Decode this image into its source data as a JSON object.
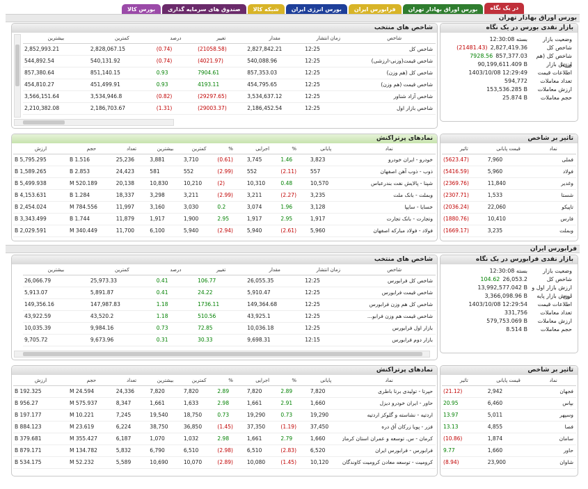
{
  "tabs": [
    {
      "label": "در یک نگاه",
      "color": "#c0303a",
      "active": true
    },
    {
      "label": "بورس اوراق بهادار تهران",
      "color": "#2f7d2f",
      "active": false
    },
    {
      "label": "فرابورس ایران",
      "color": "#d8b427",
      "active": false
    },
    {
      "label": "بورس انرژی ایران",
      "color": "#1e3f9a",
      "active": false
    },
    {
      "label": "شبکه کالا",
      "color": "#d8b427",
      "active": false
    },
    {
      "label": "صندوق های سرمایه گذاری",
      "color": "#6a2a6a",
      "active": false
    },
    {
      "label": "بورس کالا",
      "color": "#9b4aa8",
      "active": false
    }
  ],
  "tse": {
    "section_title": "بورس اوراق بهادار تهران",
    "market": {
      "title": "بازار نقدی بورس در یک نگاه",
      "rows": [
        {
          "label": "وضعیت بازار",
          "value": "بسته 12:30:08",
          "change": "",
          "tone": ""
        },
        {
          "label": "شاخص کل",
          "value": "2,827,419.36",
          "change": "(21481.43)",
          "tone": "neg"
        },
        {
          "label": "شاخص کل (هم وزن)",
          "value": "857,377.03",
          "change": "7928.56",
          "tone": "pos"
        },
        {
          "label": "ارزش بازار",
          "value": "90,199,611.409 B",
          "change": "",
          "tone": ""
        },
        {
          "label": "اطلاعات قیمت",
          "value": "1403/10/08 12:29:49",
          "change": "",
          "tone": ""
        },
        {
          "label": "تعداد معاملات",
          "value": "594,772",
          "change": "",
          "tone": ""
        },
        {
          "label": "ارزش معاملات",
          "value": "153,536.285 B",
          "change": "",
          "tone": ""
        },
        {
          "label": "حجم معاملات",
          "value": "25.874 B",
          "change": "",
          "tone": ""
        }
      ]
    },
    "indices": {
      "title": "شاخص های منتخب",
      "headers": [
        "شاخص",
        "زمان انتشار",
        "مقدار",
        "تغییر",
        "درصد",
        "کمترین",
        "بیشترین"
      ],
      "rows": [
        {
          "name": "شاخص کل",
          "time": "12:25",
          "value": "2,827,842.21",
          "change": "(21058.58)",
          "pct": "(0.74)",
          "low": "2,828,067.15",
          "high": "2,852,993.21",
          "tone": "neg"
        },
        {
          "name": "شاخص قیمت(وزنی-ارزشی)",
          "time": "12:25",
          "value": "540,088.96",
          "change": "(4021.97)",
          "pct": "(0.74)",
          "low": "540,131.92",
          "high": "544,892.54",
          "tone": "neg"
        },
        {
          "name": "شاخص کل (هم وزن)",
          "time": "12:25",
          "value": "857,353.03",
          "change": "7904.61",
          "pct": "0.93",
          "low": "851,140.15",
          "high": "857,380.64",
          "tone": "pos"
        },
        {
          "name": "شاخص قیمت (هم وزن)",
          "time": "12:25",
          "value": "454,795.65",
          "change": "4193.11",
          "pct": "0.93",
          "low": "451,499.91",
          "high": "454,810.27",
          "tone": "pos"
        },
        {
          "name": "شاخص آزاد شناور",
          "time": "12:25",
          "value": "3,534,637.12",
          "change": "(29297.65)",
          "pct": "(0.82)",
          "low": "3,534,946.8",
          "high": "3,566,151.64",
          "tone": "neg"
        },
        {
          "name": "شاخص بازار اول",
          "time": "12:25",
          "value": "2,186,452.54",
          "change": "(29003.37)",
          "pct": "(1.31)",
          "low": "2,186,703.67",
          "high": "2,210,382.08",
          "tone": "neg"
        }
      ]
    },
    "impact": {
      "title": "تاثیر بر شاخص",
      "headers": [
        "نماد",
        "قیمت پایانی",
        "تاثیر"
      ],
      "rows": [
        {
          "symbol": "فملی",
          "price": "7,960",
          "impact": "(5623.47)"
        },
        {
          "symbol": "فولاد",
          "price": "5,960",
          "impact": "(5416.59)"
        },
        {
          "symbol": "وغدیر",
          "price": "11,840",
          "impact": "(2369.76)"
        },
        {
          "symbol": "شستا",
          "price": "1,533",
          "impact": "(2307.71)"
        },
        {
          "symbol": "تاپیکو",
          "price": "22,060",
          "impact": "(2036.24)"
        },
        {
          "symbol": "فارس",
          "price": "10,410",
          "impact": "(1880.76)"
        },
        {
          "symbol": "وبملت",
          "price": "3,235",
          "impact": "(1669.17)"
        }
      ]
    },
    "active": {
      "title": "نمادهای پرتراکنش",
      "headers": [
        "نماد",
        "پایانی",
        "%",
        "اجرایی",
        "%",
        "کمترین",
        "بیشترین",
        "تعداد",
        "حجم",
        "ارزش"
      ],
      "rows": [
        {
          "name": "خودرو - ایران خودرو",
          "close": "3,823",
          "cpct": "1.46",
          "last": "3,745",
          "lpct": "(0.61)",
          "low": "3,710",
          "high": "3,881",
          "count": "25,236",
          "vol": "1.516 B",
          "val": "5,795.295 B",
          "ct": "pos",
          "lt": "neg"
        },
        {
          "name": "ذوب - ذوب آهن اصفهان",
          "close": "557",
          "cpct": "(2.11)",
          "last": "552",
          "lpct": "(2.99)",
          "low": "552",
          "high": "581",
          "count": "24,423",
          "vol": "2.853 B",
          "val": "1,589.265 B",
          "ct": "neg",
          "lt": "neg"
        },
        {
          "name": "شپنا - پالایش نفت بندرعباس",
          "close": "10,570",
          "cpct": "0.48",
          "last": "10,310",
          "lpct": "(2)",
          "low": "10,210",
          "high": "10,830",
          "count": "20,138",
          "vol": "520.189 M",
          "val": "5,499.938 B",
          "ct": "pos",
          "lt": "neg"
        },
        {
          "name": "وبملت - بانک ملت",
          "close": "3,235",
          "cpct": "(2.27)",
          "last": "3,211",
          "lpct": "(2.99)",
          "low": "3,211",
          "high": "3,298",
          "count": "18,337",
          "vol": "1.284 B",
          "val": "4,153.631 B",
          "ct": "neg",
          "lt": "neg"
        },
        {
          "name": "خسایا - سایپا",
          "close": "3,128",
          "cpct": "1.96",
          "last": "3,074",
          "lpct": "0.2",
          "low": "3,030",
          "high": "3,160",
          "count": "11,997",
          "vol": "784.556 M",
          "val": "2,454.024 B",
          "ct": "pos",
          "lt": "pos"
        },
        {
          "name": "وتجارت - بانک تجارت",
          "close": "1,917",
          "cpct": "2.95",
          "last": "1,917",
          "lpct": "2.95",
          "low": "1,900",
          "high": "1,917",
          "count": "11,879",
          "vol": "1.744 B",
          "val": "3,343.499 B",
          "ct": "pos",
          "lt": "pos"
        },
        {
          "name": "فولاد - فولاد مبارکه اصفهان",
          "close": "5,960",
          "cpct": "(2.61)",
          "last": "5,940",
          "lpct": "(2.94)",
          "low": "5,940",
          "high": "6,100",
          "count": "11,700",
          "vol": "340.449 M",
          "val": "2,029.591 B",
          "ct": "neg",
          "lt": "neg"
        }
      ]
    }
  },
  "ifb": {
    "section_title": "فرابورس ایران",
    "market": {
      "title": "بازار نقدی فرابورس در یک نگاه",
      "rows": [
        {
          "label": "وضعیت بازار",
          "value": "بسته 12:30:08",
          "change": "",
          "tone": ""
        },
        {
          "label": "شاخص کل",
          "value": "26,053.2",
          "change": "104.62",
          "tone": "pos"
        },
        {
          "label": "ارزش بازار اول و دوم",
          "value": "13,992,577.042 B",
          "change": "",
          "tone": ""
        },
        {
          "label": "ارزش بازار پایه",
          "value": "3,366,098.96 B",
          "change": "",
          "tone": ""
        },
        {
          "label": "اطلاعات قیمت",
          "value": "1403/10/08 12:29:54",
          "change": "",
          "tone": ""
        },
        {
          "label": "تعداد معاملات",
          "value": "331,756",
          "change": "",
          "tone": ""
        },
        {
          "label": "ارزش معاملات",
          "value": "579,753.069 B",
          "change": "",
          "tone": ""
        },
        {
          "label": "حجم معاملات",
          "value": "8.514 B",
          "change": "",
          "tone": ""
        }
      ]
    },
    "indices": {
      "title": "شاخص های منتخب",
      "headers": [
        "شاخص",
        "زمان انتشار",
        "مقدار",
        "تغییر",
        "درصد",
        "کمترین",
        "بیشترین"
      ],
      "rows": [
        {
          "name": "شاخص کل فرابورس",
          "time": "12:25",
          "value": "26,055.35",
          "change": "106.77",
          "pct": "0.41",
          "low": "25,973.33",
          "high": "26,066.79",
          "tone": "pos"
        },
        {
          "name": "شاخص قیمت فرابورس",
          "time": "12:25",
          "value": "5,910.47",
          "change": "24.22",
          "pct": "0.41",
          "low": "5,891.87",
          "high": "5,913.07",
          "tone": "pos"
        },
        {
          "name": "شاخص کل هم وزن فرابورس",
          "time": "12:25",
          "value": "149,364.68",
          "change": "1736.11",
          "pct": "1.18",
          "low": "147,987.83",
          "high": "149,356.16",
          "tone": "pos"
        },
        {
          "name": "شاخص قیمت هم وزن فرابو...",
          "time": "12:25",
          "value": "43,925.1",
          "change": "510.56",
          "pct": "1.18",
          "low": "43,520.2",
          "high": "43,922.59",
          "tone": "pos"
        },
        {
          "name": "بازار اول فرابورس",
          "time": "12:25",
          "value": "10,036.18",
          "change": "72.85",
          "pct": "0.73",
          "low": "9,984.16",
          "high": "10,035.39",
          "tone": "pos"
        },
        {
          "name": "بازار دوم فرابورس",
          "time": "12:15",
          "value": "9,698.31",
          "change": "30.33",
          "pct": "0.31",
          "low": "9,673.96",
          "high": "9,705.72",
          "tone": "pos"
        }
      ]
    },
    "impact": {
      "title": "تاثیر بر شاخص",
      "headers": [
        "نماد",
        "قیمت پایانی",
        "تاثیر"
      ],
      "rows": [
        {
          "symbol": "فجهان",
          "price": "2,942",
          "impact": "(21.12)",
          "tone": "neg"
        },
        {
          "symbol": "بپاس",
          "price": "6,460",
          "impact": "20.95",
          "tone": "pos"
        },
        {
          "symbol": "وسپهر",
          "price": "5,011",
          "impact": "13.97",
          "tone": "pos"
        },
        {
          "symbol": "فصا",
          "price": "4,855",
          "impact": "13.13",
          "tone": "pos"
        },
        {
          "symbol": "سامان",
          "price": "1,874",
          "impact": "(10.86)",
          "tone": "neg"
        },
        {
          "symbol": "حاور",
          "price": "1,660",
          "impact": "9.77",
          "tone": "pos"
        },
        {
          "symbol": "شاوان",
          "price": "23,900",
          "impact": "(8.94)",
          "tone": "neg"
        }
      ]
    },
    "active": {
      "title": "نمادهای پرتراکنش",
      "headers": [
        "نماد",
        "پایانی",
        "%",
        "اجرایی",
        "%",
        "کمترین",
        "بیشترین",
        "تعداد",
        "حجم",
        "ارزش"
      ],
      "rows": [
        {
          "name": "حپرتا - تولیدی برنا باطری",
          "close": "7,820",
          "cpct": "2.89",
          "last": "7,820",
          "lpct": "2.89",
          "low": "7,820",
          "high": "7,820",
          "count": "24,336",
          "vol": "24.594 M",
          "val": "192.325 B",
          "ct": "pos",
          "lt": "pos"
        },
        {
          "name": "حاور - ایران خودرو دیزل",
          "close": "1,660",
          "cpct": "2.91",
          "last": "1,661",
          "lpct": "2.98",
          "low": "1,633",
          "high": "1,661",
          "count": "8,347",
          "vol": "575.937 M",
          "val": "956.27 B",
          "ct": "pos",
          "lt": "pos"
        },
        {
          "name": "اردتیه - نشاسته و گلوکز اردتیه",
          "close": "19,290",
          "cpct": "0.73",
          "last": "19,290",
          "lpct": "0.73",
          "low": "18,750",
          "high": "19,540",
          "count": "7,245",
          "vol": "10.221 M",
          "val": "197.177 B",
          "ct": "pos",
          "lt": "pos"
        },
        {
          "name": "فزر - پویا زرکان آق دره",
          "close": "37,450",
          "cpct": "(1.19)",
          "last": "37,350",
          "lpct": "(1.45)",
          "low": "36,850",
          "high": "38,750",
          "count": "6,224",
          "vol": "23.619 M",
          "val": "884.123 B",
          "ct": "neg",
          "lt": "neg"
        },
        {
          "name": "کرمان - س. توسعه و عمران استان کرمان",
          "close": "1,660",
          "cpct": "2.79",
          "last": "1,661",
          "lpct": "2.98",
          "low": "1,032",
          "high": "1,070",
          "count": "6,187",
          "vol": "355.427 M",
          "val": "379.681 B",
          "ct": "pos",
          "lt": "pos"
        },
        {
          "name": "فرابورس - فرابورس ایران",
          "close": "6,520",
          "cpct": "(2.83)",
          "last": "6,510",
          "lpct": "(2.98)",
          "low": "6,510",
          "high": "6,790",
          "count": "5,832",
          "vol": "134.782 M",
          "val": "879.171 B",
          "ct": "neg",
          "lt": "neg"
        },
        {
          "name": "کرومیت - توسعه معادن کرومیت کاوندگان",
          "close": "10,120",
          "cpct": "(1.45)",
          "last": "10,080",
          "lpct": "(2.89)",
          "low": "10,070",
          "high": "10,690",
          "count": "5,589",
          "vol": "52.232 M",
          "val": "534.175 B",
          "ct": "neg",
          "lt": "neg"
        }
      ]
    }
  }
}
